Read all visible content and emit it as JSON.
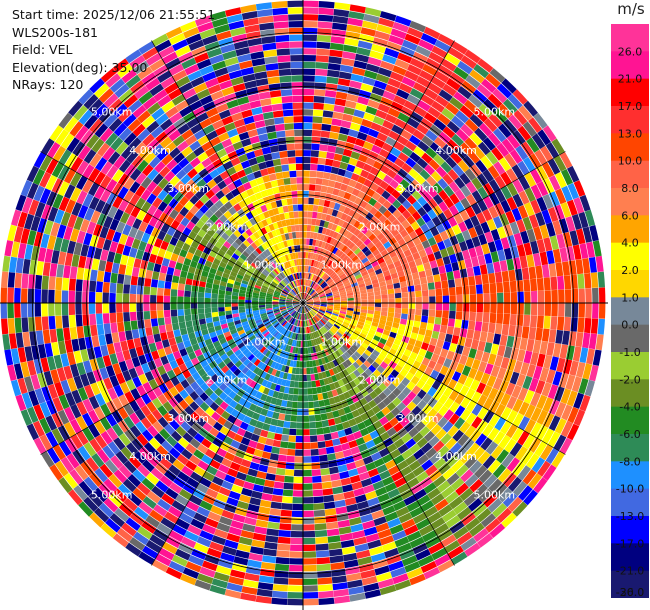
{
  "chart_data": {
    "type": "heatmap",
    "projection": "polar-ppi",
    "annotations": {
      "start_time": "Start time: 2025/12/06 21:55:51",
      "instrument": "WLS200s-181",
      "field": "Field: VEL",
      "elevation": "Elevation(deg): 35.00",
      "nrays": "NRays: 120"
    },
    "range_rings_km": [
      1.0,
      2.0,
      3.0,
      4.0,
      5.0
    ],
    "range_ring_label_suffix": "km",
    "max_range_km": 5.6,
    "n_rays": 120,
    "colorbar": {
      "unit": "m/s",
      "labels": [
        "26.0",
        "21.0",
        "17.0",
        "13.0",
        "10.0",
        "8.0",
        "6.0",
        "4.0",
        "2.0",
        "1.0",
        "0.0",
        "-1.0",
        "-2.0",
        "-4.0",
        "-6.0",
        "-8.0",
        "-10.0",
        "-13.0",
        "-17.0",
        "-21.0",
        "-26.0",
        "-30.0"
      ],
      "colors": [
        "#ff3399",
        "#ff1493",
        "#ff0000",
        "#ff2f2f",
        "#ff4500",
        "#ff6347",
        "#ff7f50",
        "#ffa500",
        "#ffff00",
        "#ffd700",
        "#778899",
        "#696969",
        "#9acd32",
        "#6b8e23",
        "#228b22",
        "#2e8b57",
        "#1e90ff",
        "#4169e1",
        "#0000ff",
        "#000080",
        "#191970"
      ]
    },
    "wind_signal": {
      "toward_direction_deg_math": 45,
      "max_reliable_range_km": 2.4,
      "far_reliable_sector_deg": [
        -70,
        10
      ],
      "far_reliable_max_km": 5.4
    }
  }
}
